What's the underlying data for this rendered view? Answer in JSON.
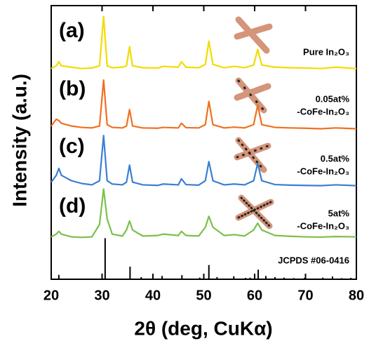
{
  "chart_data": {
    "type": "line",
    "x_label": "2θ (deg, CuKα)",
    "y_label": "Intensity (a.u.)",
    "xlim": [
      20,
      80
    ],
    "xticks": [
      20,
      30,
      40,
      50,
      60,
      70,
      80
    ],
    "ylim": [
      0,
      100
    ],
    "x": [
      20,
      21,
      21.5,
      22,
      24,
      26,
      28,
      29.5,
      30.3,
      31,
      32,
      34,
      34.8,
      35.4,
      36,
      38,
      41,
      42,
      45,
      45.6,
      46.5,
      49,
      50.3,
      51,
      51.8,
      54,
      56,
      58,
      59.8,
      60.6,
      61.4,
      64,
      67,
      70,
      73,
      76,
      80
    ],
    "series": [
      {
        "name": "(a)",
        "label_lines": [
          "Pure In₂O₃"
        ],
        "color": "#f2dc00",
        "values": [
          77,
          78,
          79.5,
          78,
          77.5,
          77,
          77.2,
          78,
          96,
          78,
          77.3,
          77.5,
          78,
          85,
          78,
          77.3,
          77.2,
          77.8,
          77.5,
          79.5,
          77.5,
          77.3,
          78.5,
          87,
          78.5,
          77.3,
          77.8,
          77.3,
          78.3,
          84,
          78.3,
          77.5,
          77.3,
          77.2,
          77,
          77.5,
          77
        ]
      },
      {
        "name": "(b)",
        "label_lines": [
          "0.05at%",
          "-CoFe-In₂O₃"
        ],
        "color": "#f07020",
        "values": [
          56,
          58.5,
          58,
          57,
          56,
          55.5,
          55.3,
          56,
          72.8,
          56.5,
          55.5,
          55.3,
          56,
          62,
          56,
          55.3,
          55.2,
          55.5,
          55.3,
          57,
          55.4,
          55.3,
          56.5,
          65,
          56.5,
          55.3,
          55.6,
          55.3,
          56.5,
          63.6,
          56.5,
          55.5,
          55.3,
          55.2,
          55,
          55.3,
          55
        ]
      },
      {
        "name": "(c)",
        "label_lines": [
          "0.5at%",
          "-CoFe-In₂O₃"
        ],
        "color": "#3a7fd4",
        "values": [
          35.5,
          38,
          40.5,
          38,
          36,
          35,
          34.5,
          36,
          52.5,
          36,
          34.8,
          34.5,
          35.5,
          41.7,
          35.5,
          34.5,
          34.3,
          34.8,
          34.5,
          36.7,
          34.6,
          34.4,
          36,
          43,
          36,
          34.5,
          34.8,
          34.5,
          36,
          42.3,
          36,
          34.6,
          34.4,
          34.3,
          34.2,
          34.5,
          34.2
        ]
      },
      {
        "name": "(d)",
        "label_lines": [
          "5at%",
          "-CoFe-In₂O₃"
        ],
        "color": "#7cc04a",
        "values": [
          15.5,
          16.5,
          17.5,
          16.5,
          15.5,
          15.3,
          15.5,
          20,
          33,
          22,
          16.5,
          15.8,
          18,
          21.3,
          18,
          15.8,
          16,
          16.5,
          16,
          17.5,
          16,
          15.8,
          19,
          23,
          19,
          16,
          16.3,
          15.8,
          18,
          20.5,
          18,
          16,
          15.7,
          15.5,
          15.4,
          15.6,
          15.5
        ]
      }
    ],
    "reference": {
      "name": "JCPDS #06-0416",
      "color": "#000000",
      "x": [
        21.5,
        30.6,
        35.5,
        37.7,
        41.8,
        45.7,
        49.2,
        51.0,
        52.6,
        55.9,
        58.2,
        59.1,
        60.7,
        62.2,
        64.0,
        65.8,
        67.7,
        69.8,
        73.4,
        75.3,
        77.1,
        78.9
      ],
      "values": [
        1.6,
        15,
        4.6,
        0.8,
        1.2,
        1.5,
        0.6,
        5.2,
        0.8,
        1.1,
        0.5,
        0.6,
        3.5,
        1.2,
        0.8,
        0.6,
        0.4,
        0.5,
        0.6,
        1.0,
        0.4,
        0.5
      ]
    }
  }
}
